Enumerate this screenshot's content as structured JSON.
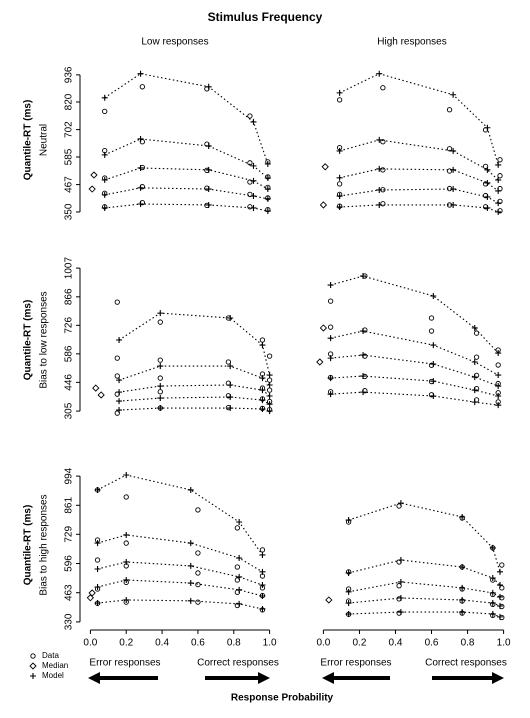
{
  "title": "Stimulus Frequency",
  "column_titles": [
    "Low responses",
    "High responses"
  ],
  "row_titles": [
    "Neutral",
    "Bias to low responses",
    "Bias to high responses"
  ],
  "ylabel": "Quantile-RT (ms)",
  "xlabel": "Response Probability",
  "arrow_labels": [
    "Error responses",
    "Correct responses"
  ],
  "color": "#000000",
  "legend": [
    {
      "label": "Data",
      "marker": "circle"
    },
    {
      "label": "Median",
      "marker": "diamond"
    },
    {
      "label": "Model",
      "marker": "plus"
    }
  ],
  "chart_data": [
    {
      "type": "quantile-probability",
      "xlim": [
        -0.03,
        1.03
      ],
      "ylim": [
        337,
        991
      ],
      "yticks": [
        350,
        467,
        585,
        702,
        820,
        936
      ],
      "model": {
        "marker": "plus",
        "line": "dotted",
        "x": [
          0.08,
          0.28,
          0.66,
          0.91,
          0.99
        ],
        "values": [
          [
            367,
            384,
            380,
            367,
            354
          ],
          [
            423,
            453,
            448,
            418,
            406
          ],
          [
            487,
            538,
            530,
            483,
            448
          ],
          [
            594,
            662,
            632,
            547,
            495
          ],
          [
            838,
            941,
            885,
            735,
            555
          ]
        ]
      },
      "data": {
        "marker": "circle",
        "x": [
          0.08,
          0.29,
          0.65,
          0.89,
          0.99
        ],
        "values": [
          [
            372,
            390,
            378,
            372,
            360
          ],
          [
            430,
            458,
            452,
            425,
            410
          ],
          [
            495,
            540,
            528,
            478,
            455
          ],
          [
            612,
            650,
            640,
            560,
            500
          ],
          [
            780,
            885,
            876,
            760,
            564
          ]
        ]
      },
      "median": {
        "marker": "diamond",
        "x": [
          0.02,
          0.01
        ],
        "values": [
          508,
          448
        ]
      }
    },
    {
      "type": "quantile-probability",
      "xlim": [
        -0.03,
        1.03
      ],
      "ylim": [
        337,
        991
      ],
      "model": {
        "marker": "plus",
        "line": "dotted",
        "x": [
          0.09,
          0.31,
          0.72,
          0.91,
          0.97
        ],
        "values": [
          [
            371,
            380,
            380,
            367,
            350
          ],
          [
            418,
            444,
            448,
            414,
            388
          ],
          [
            496,
            534,
            530,
            474,
            440
          ],
          [
            611,
            658,
            611,
            530,
            487
          ],
          [
            859,
            941,
            851,
            710,
            551
          ]
        ]
      },
      "data": {
        "marker": "circle",
        "x": [
          0.09,
          0.33,
          0.7,
          0.9,
          0.98
        ],
        "values": [
          [
            375,
            385,
            380,
            372,
            355
          ],
          [
            425,
            445,
            450,
            420,
            395
          ],
          [
            470,
            530,
            525,
            470,
            450
          ],
          [
            625,
            650,
            620,
            545,
            505
          ],
          [
            829,
            881,
            787,
            701,
            573
          ]
        ]
      },
      "median": {
        "marker": "diamond",
        "x": [
          0.01,
          0.0
        ],
        "values": [
          543,
          380
        ]
      }
    },
    {
      "type": "quantile-probability",
      "xlim": [
        -0.03,
        1.03
      ],
      "ylim": [
        271,
        1037
      ],
      "yticks": [
        305,
        446,
        586,
        726,
        866,
        1007
      ],
      "model": {
        "marker": "plus",
        "line": "dotted",
        "x": [
          0.16,
          0.39,
          0.78,
          0.96,
          1.0
        ],
        "values": [
          [
            310,
            320,
            320,
            315,
            305
          ],
          [
            354,
            369,
            374,
            359,
            339
          ],
          [
            398,
            428,
            433,
            408,
            379
          ],
          [
            457,
            526,
            526,
            467,
            433
          ],
          [
            654,
            786,
            762,
            629,
            482
          ]
        ]
      },
      "data": {
        "marker": "circle",
        "x": [
          0.15,
          0.39,
          0.77,
          0.96,
          1.0
        ],
        "values": [
          [
            295,
            320,
            322,
            318,
            312
          ],
          [
            388,
            400,
            380,
            365,
            352
          ],
          [
            477,
            467,
            442,
            418,
            408
          ],
          [
            565,
            555,
            546,
            487,
            457
          ],
          [
            840,
            742,
            762,
            654,
            575
          ]
        ]
      },
      "median": {
        "marker": "diamond",
        "x": [
          0.03,
          0.06
        ],
        "values": [
          418,
          384
        ]
      }
    },
    {
      "type": "quantile-probability",
      "xlim": [
        -0.03,
        1.03
      ],
      "ylim": [
        271,
        1037
      ],
      "model": {
        "marker": "plus",
        "line": "dotted",
        "x": [
          0.04,
          0.22,
          0.61,
          0.84,
          0.97
        ],
        "values": [
          [
            388,
            398,
            379,
            349,
            334
          ],
          [
            467,
            477,
            452,
            408,
            379
          ],
          [
            565,
            580,
            536,
            472,
            428
          ],
          [
            663,
            698,
            629,
            546,
            482
          ],
          [
            924,
            968,
            870,
            713,
            590
          ]
        ]
      },
      "data": {
        "marker": "circle",
        "x": [
          0.04,
          0.23,
          0.6,
          0.85,
          0.97
        ],
        "values": [
          [
            400,
            405,
            385,
            360,
            350
          ],
          [
            470,
            475,
            450,
            415,
            395
          ],
          [
            585,
            575,
            530,
            480,
            440
          ],
          [
            717,
            703,
            698,
            570,
            531
          ],
          [
            845,
            968,
            762,
            688,
            605
          ]
        ]
      },
      "median": {
        "marker": "diamond",
        "x": [
          0.0,
          -0.02
        ],
        "values": [
          713,
          546
        ]
      }
    },
    {
      "type": "quantile-probability",
      "xlim": [
        -0.03,
        1.03
      ],
      "ylim": [
        316,
        1040
      ],
      "yticks": [
        330,
        463,
        596,
        729,
        861,
        994
      ],
      "xticks": [
        {
          "value": 0,
          "label": "0.0"
        },
        0.2,
        0.4,
        0.6,
        0.8,
        {
          "value": 1,
          "label": "1.0"
        }
      ],
      "model": {
        "marker": "plus",
        "line": "dotted",
        "x": [
          0.04,
          0.2,
          0.56,
          0.83,
          0.96
        ],
        "values": [
          [
            416,
            430,
            426,
            412,
            389
          ],
          [
            489,
            521,
            507,
            476,
            448
          ],
          [
            571,
            603,
            585,
            535,
            498
          ],
          [
            689,
            726,
            689,
            621,
            558
          ],
          [
            931,
            999,
            931,
            785,
            635
          ]
        ]
      },
      "data": {
        "marker": "circle",
        "x": [
          0.04,
          0.2,
          0.6,
          0.82,
          0.96
        ],
        "values": [
          [
            415,
            420,
            420,
            405,
            385
          ],
          [
            480,
            510,
            500,
            465,
            450
          ],
          [
            612,
            585,
            553,
            521,
            485
          ],
          [
            703,
            689,
            644,
            580,
            539
          ],
          [
            931,
            899,
            840,
            758,
            658
          ]
        ]
      },
      "median": {
        "marker": "diamond",
        "x": [
          0.01,
          0.0
        ],
        "values": [
          462,
          440
        ]
      }
    },
    {
      "type": "quantile-probability",
      "xlim": [
        -0.03,
        1.03
      ],
      "ylim": [
        316,
        1040
      ],
      "xticks": [
        {
          "value": 0,
          "label": "0.0"
        },
        0.2,
        0.4,
        0.6,
        0.8,
        {
          "value": 1,
          "label": "1.0"
        }
      ],
      "model": {
        "marker": "plus",
        "line": "dotted",
        "x": [
          0.14,
          0.43,
          0.77,
          0.94,
          0.98
        ],
        "values": [
          [
            366,
            375,
            375,
            366,
            353
          ],
          [
            416,
            439,
            430,
            416,
            403
          ],
          [
            467,
            512,
            485,
            462,
            444
          ],
          [
            553,
            612,
            580,
            530,
            498
          ],
          [
            794,
            871,
            808,
            667,
            558
          ]
        ]
      },
      "data": {
        "marker": "circle",
        "x": [
          0.14,
          0.42,
          0.77,
          0.94,
          0.99
        ],
        "values": [
          [
            365,
            370,
            370,
            360,
            350
          ],
          [
            425,
            435,
            425,
            410,
            400
          ],
          [
            480,
            495,
            480,
            455,
            440
          ],
          [
            558,
            603,
            580,
            521,
            485
          ],
          [
            785,
            858,
            803,
            667,
            589
          ]
        ]
      },
      "median": {
        "marker": "diamond",
        "x": [
          0.03
        ],
        "values": [
          430
        ]
      }
    }
  ]
}
